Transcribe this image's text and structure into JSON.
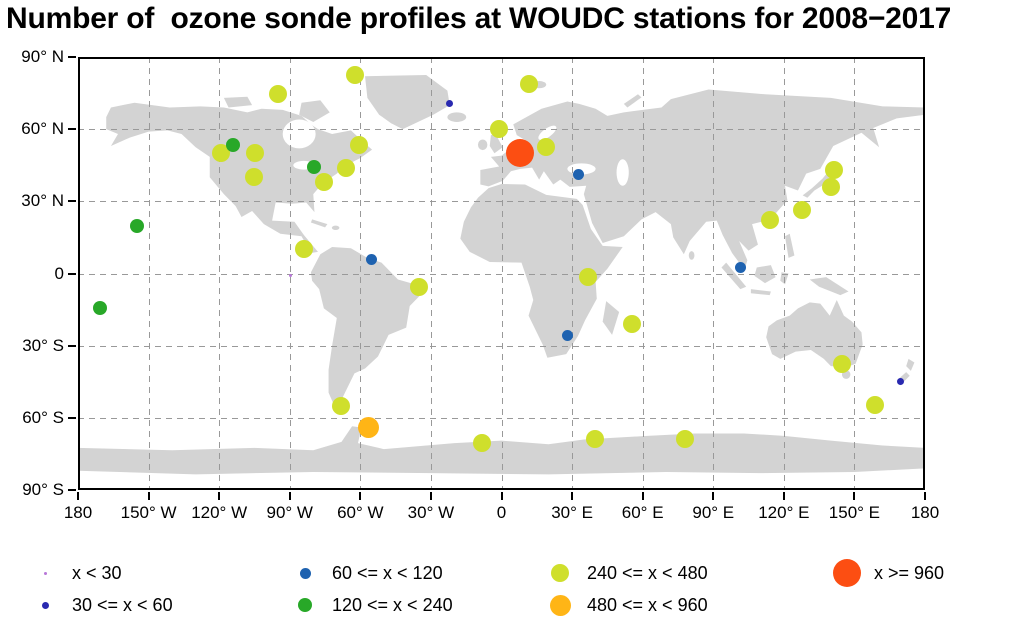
{
  "chart_data": {
    "type": "scatter",
    "subtype": "geo-bubble-map",
    "title": "Number of  ozone sonde profiles at WOUDC stations for 2008−2017",
    "projection": "equirectangular",
    "lon_range": [
      -180,
      180
    ],
    "lat_range": [
      -90,
      90
    ],
    "grid": {
      "interval_deg": 30,
      "style": "dashed",
      "color": "#999999"
    },
    "land_color": "#d3d3d3",
    "legend_position": "bottom",
    "axes": {
      "lat_ticks": [
        {
          "v": 90,
          "label": "90° N"
        },
        {
          "v": 60,
          "label": "60° N"
        },
        {
          "v": 30,
          "label": "30° N"
        },
        {
          "v": 0,
          "label": "0"
        },
        {
          "v": -30,
          "label": "30° S"
        },
        {
          "v": -60,
          "label": "60° S"
        },
        {
          "v": -90,
          "label": "90° S"
        }
      ],
      "lon_ticks": [
        {
          "v": -180,
          "label": "180"
        },
        {
          "v": -150,
          "label": "150° W"
        },
        {
          "v": -120,
          "label": "120° W"
        },
        {
          "v": -90,
          "label": "90° W"
        },
        {
          "v": -60,
          "label": "60° W"
        },
        {
          "v": -30,
          "label": "30° W"
        },
        {
          "v": 0,
          "label": "0"
        },
        {
          "v": 30,
          "label": "30° E"
        },
        {
          "v": 60,
          "label": "60° E"
        },
        {
          "v": 90,
          "label": "90° E"
        },
        {
          "v": 120,
          "label": "120° E"
        },
        {
          "v": 150,
          "label": "150° E"
        },
        {
          "v": 180,
          "label": "180"
        }
      ]
    },
    "legend": [
      {
        "key": "c1",
        "label": "x < 30",
        "color": "#b877d8",
        "diameter": 3
      },
      {
        "key": "c2",
        "label": "30 <= x < 60",
        "color": "#2929b0",
        "diameter": 7
      },
      {
        "key": "c3",
        "label": "60 <= x < 120",
        "color": "#1e62b0",
        "diameter": 11
      },
      {
        "key": "c4",
        "label": "120 <= x < 240",
        "color": "#28a828",
        "diameter": 14
      },
      {
        "key": "c5",
        "label": "240 <= x < 480",
        "color": "#cfdf2c",
        "diameter": 18
      },
      {
        "key": "c6",
        "label": "480 <= x < 960",
        "color": "#ffb516",
        "diameter": 21
      },
      {
        "key": "c7",
        "label": "x >= 960",
        "color": "#fc4e12",
        "diameter": 28
      }
    ],
    "stations": [
      {
        "lon": -95.0,
        "lat": 74.7,
        "cat": "c5"
      },
      {
        "lon": -62.3,
        "lat": 82.5,
        "cat": "c5"
      },
      {
        "lon": 11.9,
        "lat": 78.9,
        "cat": "c5"
      },
      {
        "lon": -22.0,
        "lat": 70.5,
        "cat": "c2"
      },
      {
        "lon": -1.2,
        "lat": 60.1,
        "cat": "c5"
      },
      {
        "lon": 8.0,
        "lat": 50.0,
        "cat": "c7"
      },
      {
        "lon": 19.0,
        "lat": 52.4,
        "cat": "c5"
      },
      {
        "lon": 32.9,
        "lat": 41.0,
        "cat": "c3"
      },
      {
        "lon": -119.4,
        "lat": 49.9,
        "cat": "c5"
      },
      {
        "lon": -114.1,
        "lat": 53.5,
        "cat": "c4"
      },
      {
        "lon": -104.7,
        "lat": 50.2,
        "cat": "c5"
      },
      {
        "lon": -60.4,
        "lat": 53.3,
        "cat": "c5"
      },
      {
        "lon": -79.8,
        "lat": 44.2,
        "cat": "c4"
      },
      {
        "lon": -66.1,
        "lat": 43.9,
        "cat": "c5"
      },
      {
        "lon": -105.2,
        "lat": 40.0,
        "cat": "c5"
      },
      {
        "lon": -75.5,
        "lat": 37.9,
        "cat": "c5"
      },
      {
        "lon": -155.1,
        "lat": 19.7,
        "cat": "c4"
      },
      {
        "lon": -170.6,
        "lat": -14.2,
        "cat": "c4"
      },
      {
        "lon": -84.1,
        "lat": 10.0,
        "cat": "c5"
      },
      {
        "lon": -55.2,
        "lat": 5.8,
        "cat": "c3"
      },
      {
        "lon": -35.2,
        "lat": -5.8,
        "cat": "c5"
      },
      {
        "lon": -89.6,
        "lat": -0.9,
        "cat": "c1"
      },
      {
        "lon": -68.3,
        "lat": -54.9,
        "cat": "c5"
      },
      {
        "lon": -56.6,
        "lat": -64.2,
        "cat": "c6"
      },
      {
        "lon": 36.8,
        "lat": -1.3,
        "cat": "c5"
      },
      {
        "lon": 28.2,
        "lat": -25.9,
        "cat": "c3"
      },
      {
        "lon": 55.5,
        "lat": -21.1,
        "cat": "c5"
      },
      {
        "lon": 141.3,
        "lat": 43.1,
        "cat": "c5"
      },
      {
        "lon": 140.1,
        "lat": 36.1,
        "cat": "c5"
      },
      {
        "lon": 127.7,
        "lat": 26.2,
        "cat": "c5"
      },
      {
        "lon": 114.2,
        "lat": 22.3,
        "cat": "c5"
      },
      {
        "lon": 101.7,
        "lat": 2.7,
        "cat": "c3"
      },
      {
        "lon": 144.9,
        "lat": -37.7,
        "cat": "c5"
      },
      {
        "lon": 158.9,
        "lat": -54.5,
        "cat": "c5"
      },
      {
        "lon": 169.7,
        "lat": -45.0,
        "cat": "c2"
      },
      {
        "lon": -8.3,
        "lat": -70.6,
        "cat": "c5"
      },
      {
        "lon": 39.6,
        "lat": -69.0,
        "cat": "c5"
      },
      {
        "lon": 78.0,
        "lat": -68.6,
        "cat": "c5"
      }
    ]
  }
}
